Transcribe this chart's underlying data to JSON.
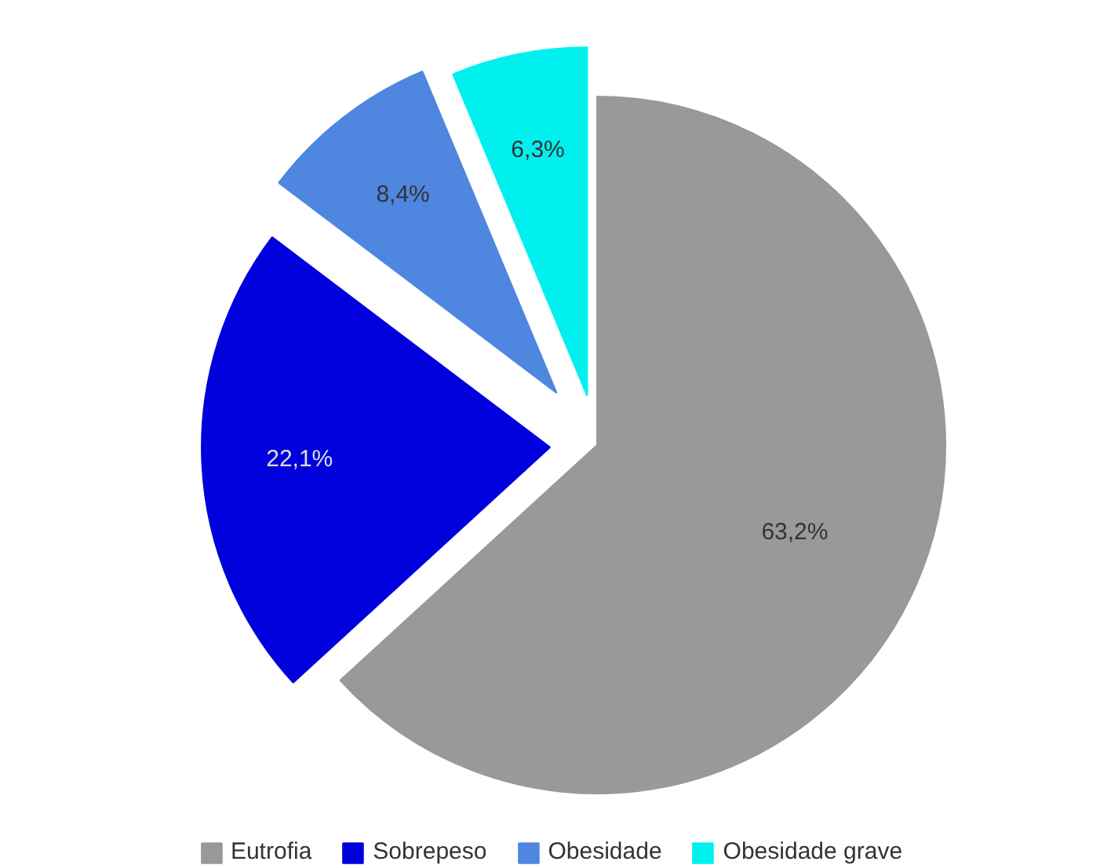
{
  "chart_data": {
    "type": "pie",
    "categories": [
      "Eutrofia",
      "Sobrepeso",
      "Obesidade",
      "Obesidade grave"
    ],
    "values": [
      63.2,
      22.1,
      8.4,
      6.3
    ],
    "colors": [
      "#999999",
      "#0000dd",
      "#4f86e0",
      "#00f0f0"
    ],
    "value_labels": [
      "63,2%",
      "22,1%",
      "8,4%",
      "6,3%"
    ],
    "legend": "bottom"
  }
}
